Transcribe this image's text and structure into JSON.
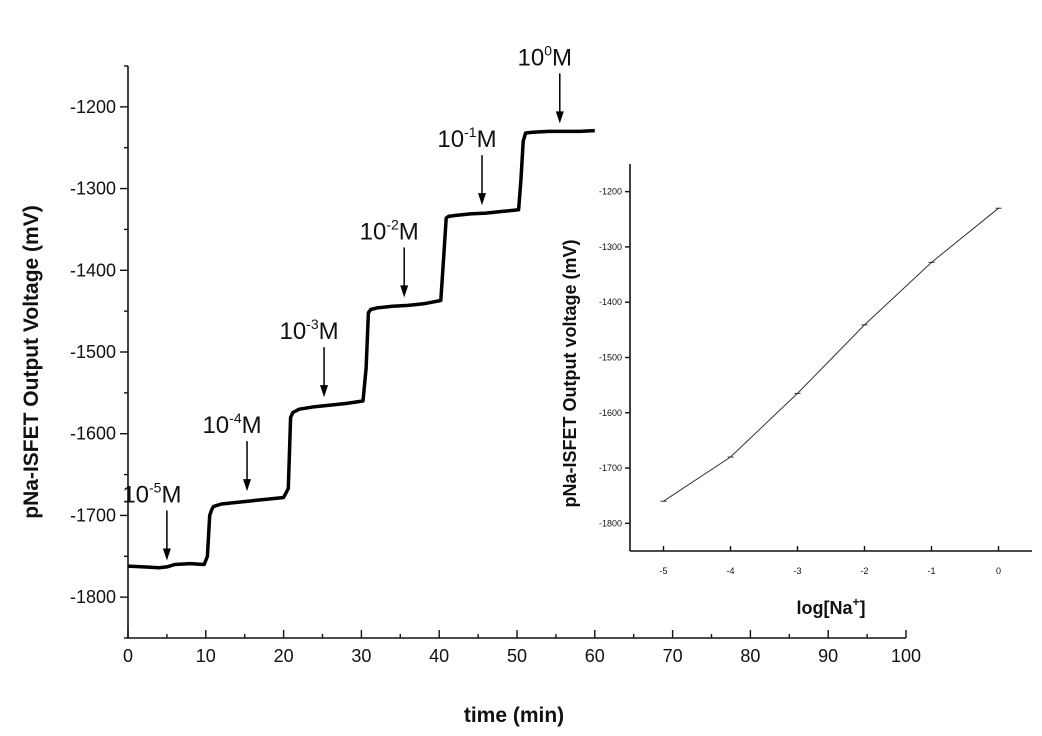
{
  "chart_data": [
    {
      "type": "line",
      "xlabel": "time (min)",
      "ylabel": "pNa-ISFET Output Voltage (mV)",
      "xlim": [
        0,
        100
      ],
      "ylim": [
        -1850,
        -1150
      ],
      "x_ticks": [
        0,
        10,
        20,
        30,
        40,
        50,
        60,
        70,
        80,
        90,
        100
      ],
      "y_ticks": [
        -1800,
        -1700,
        -1600,
        -1500,
        -1400,
        -1300,
        -1200
      ],
      "series": [
        {
          "x": [
            0,
            2,
            4,
            5,
            6,
            8,
            9.8,
            10.2,
            10.5,
            10.8,
            11,
            12,
            14,
            16,
            18,
            20,
            20.6,
            20.9,
            21.2,
            22,
            24,
            26,
            28,
            30.2,
            30.6,
            30.9,
            31.2,
            32,
            34,
            36,
            38,
            40.2,
            40.6,
            40.9,
            41.2,
            42,
            44,
            46,
            48,
            50.2,
            50.5,
            50.8,
            51.1,
            52,
            54,
            56,
            58,
            60
          ],
          "y": [
            -1762,
            -1763,
            -1764,
            -1763,
            -1760,
            -1759,
            -1760,
            -1750,
            -1700,
            -1692,
            -1689,
            -1686,
            -1684,
            -1682,
            -1680,
            -1678,
            -1667,
            -1580,
            -1574,
            -1570,
            -1567,
            -1565,
            -1563,
            -1560,
            -1520,
            -1452,
            -1448,
            -1446,
            -1444,
            -1443,
            -1441,
            -1437,
            -1380,
            -1336,
            -1334,
            -1333,
            -1331,
            -1330,
            -1328,
            -1326,
            -1290,
            -1242,
            -1232,
            -1231,
            -1230,
            -1230,
            -1230,
            -1229
          ]
        }
      ],
      "annotations": [
        {
          "base": "10",
          "sup": "-5",
          "unit": "M",
          "x": 5,
          "y": -1765
        },
        {
          "base": "10",
          "sup": "-4",
          "unit": "M",
          "x": 15.3,
          "y": -1680
        },
        {
          "base": "10",
          "sup": "-3",
          "unit": "M",
          "x": 25.2,
          "y": -1565
        },
        {
          "base": "10",
          "sup": "-2",
          "unit": "M",
          "x": 35.5,
          "y": -1443
        },
        {
          "base": "10",
          "sup": "-1",
          "unit": "M",
          "x": 45.5,
          "y": -1330
        },
        {
          "base": "10",
          "sup": "0",
          "unit": "M",
          "x": 55.5,
          "y": -1230
        }
      ]
    },
    {
      "type": "line",
      "xlabel_base": "log[Na",
      "xlabel_sup": "+",
      "xlabel_end": "]",
      "ylabel": "pNa-ISFET Output voltage  (mV)",
      "xlim": [
        -5.5,
        0.5
      ],
      "ylim": [
        -1850,
        -1150
      ],
      "x_ticks": [
        -5,
        -4,
        -3,
        -2,
        -1,
        0
      ],
      "y_ticks": [
        -1800,
        -1700,
        -1600,
        -1500,
        -1400,
        -1300,
        -1200
      ],
      "series": [
        {
          "x": [
            -5,
            -4,
            -3,
            -2,
            -1,
            0
          ],
          "y": [
            -1760,
            -1680,
            -1565,
            -1441,
            -1328,
            -1230
          ]
        }
      ]
    }
  ]
}
